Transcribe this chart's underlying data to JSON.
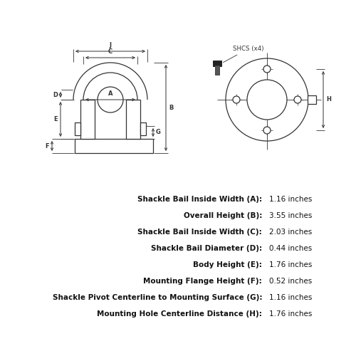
{
  "bg_color": "#ffffff",
  "line_color": "#333333",
  "specs": [
    {
      "label": "Shackle Bail Inside Width (A):",
      "value": "1.16 inches"
    },
    {
      "label": "Overall Height (B):",
      "value": "3.55 inches"
    },
    {
      "label": "Shackle Bail Inside Width (C):",
      "value": "2.03 inches"
    },
    {
      "label": "Shackle Bail Diameter (D):",
      "value": "0.44 inches"
    },
    {
      "label": "Body Height (E):",
      "value": "1.76 inches"
    },
    {
      "label": "Mounting Flange Height (F):",
      "value": "0.52 inches"
    },
    {
      "label": "Shackle Pivot Centerline to Mounting Surface (G):",
      "value": "1.16 inches"
    },
    {
      "label": "Mounting Hole Centerline Distance (H):",
      "value": "1.76 inches"
    }
  ],
  "shcs_label": "SHCS (x4)",
  "label_fontsize": 7.5,
  "value_fontsize": 7.5,
  "dim_fontsize": 6.0
}
